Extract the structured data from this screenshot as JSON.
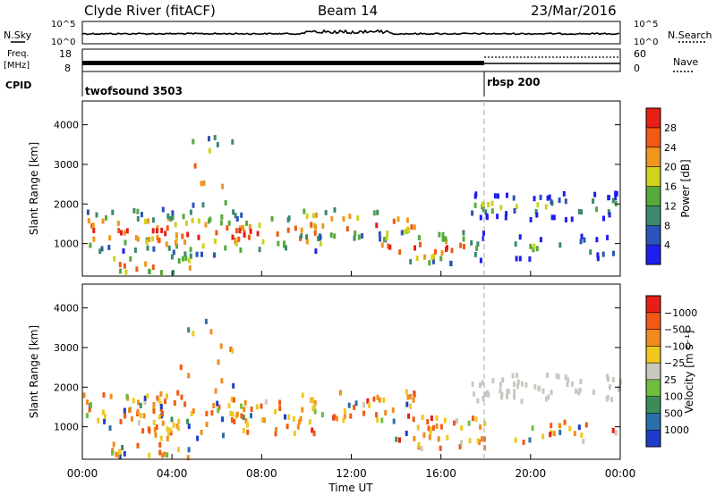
{
  "header": {
    "station": "Clyde River (fitACF)",
    "beam": "Beam 14",
    "date": "23/Mar/2016"
  },
  "noise_panel": {
    "left_label": "N.Sky",
    "right_label": "N.Search",
    "tick_top": "10^5",
    "tick_bottom": "10^0"
  },
  "freq_panel": {
    "left_label_1": "Freq.",
    "left_label_2": "[MHz]",
    "left_ticks": [
      "18",
      "8"
    ],
    "right_ticks": [
      "60",
      "0"
    ],
    "right_label": "Nave"
  },
  "cpid_panel": {
    "label": "CPID",
    "programs": [
      "twofsound 3503",
      "rbsp 200"
    ]
  },
  "chart_data": [
    {
      "type": "heatmap",
      "title": "",
      "xlabel": "",
      "ylabel": "Slant Range [km]",
      "y_ticks": [
        "1000",
        "2000",
        "3000",
        "4000"
      ],
      "ylim": [
        180,
        4600
      ],
      "colorbar": {
        "label": "Power [dB]",
        "ticks": [
          "4",
          "8",
          "12",
          "16",
          "20",
          "24",
          "28"
        ],
        "colors": [
          "#1e1ef0",
          "#2a54b8",
          "#3c8a6c",
          "#56aa3c",
          "#cfd21e",
          "#f0961e",
          "#f05a14",
          "#e61e14"
        ]
      }
    },
    {
      "type": "heatmap",
      "title": "",
      "xlabel": "Time UT",
      "ylabel": "Slant Range [km]",
      "x_ticks": [
        "00:00",
        "04:00",
        "08:00",
        "12:00",
        "16:00",
        "20:00",
        "00:00"
      ],
      "y_ticks": [
        "1000",
        "2000",
        "3000",
        "4000"
      ],
      "ylim": [
        180,
        4600
      ],
      "colorbar": {
        "label": "Velocity [m s⁻¹]",
        "ticks": [
          "1000",
          "500",
          "100",
          "25",
          "−25",
          "−100",
          "−500",
          "−1000"
        ],
        "colors": [
          "#1e3cc8",
          "#2a6eaa",
          "#3c8c5a",
          "#6ebe3c",
          "#c8c8c0",
          "#f0c81e",
          "#f08c1e",
          "#f05a14",
          "#e61e14"
        ]
      }
    }
  ]
}
